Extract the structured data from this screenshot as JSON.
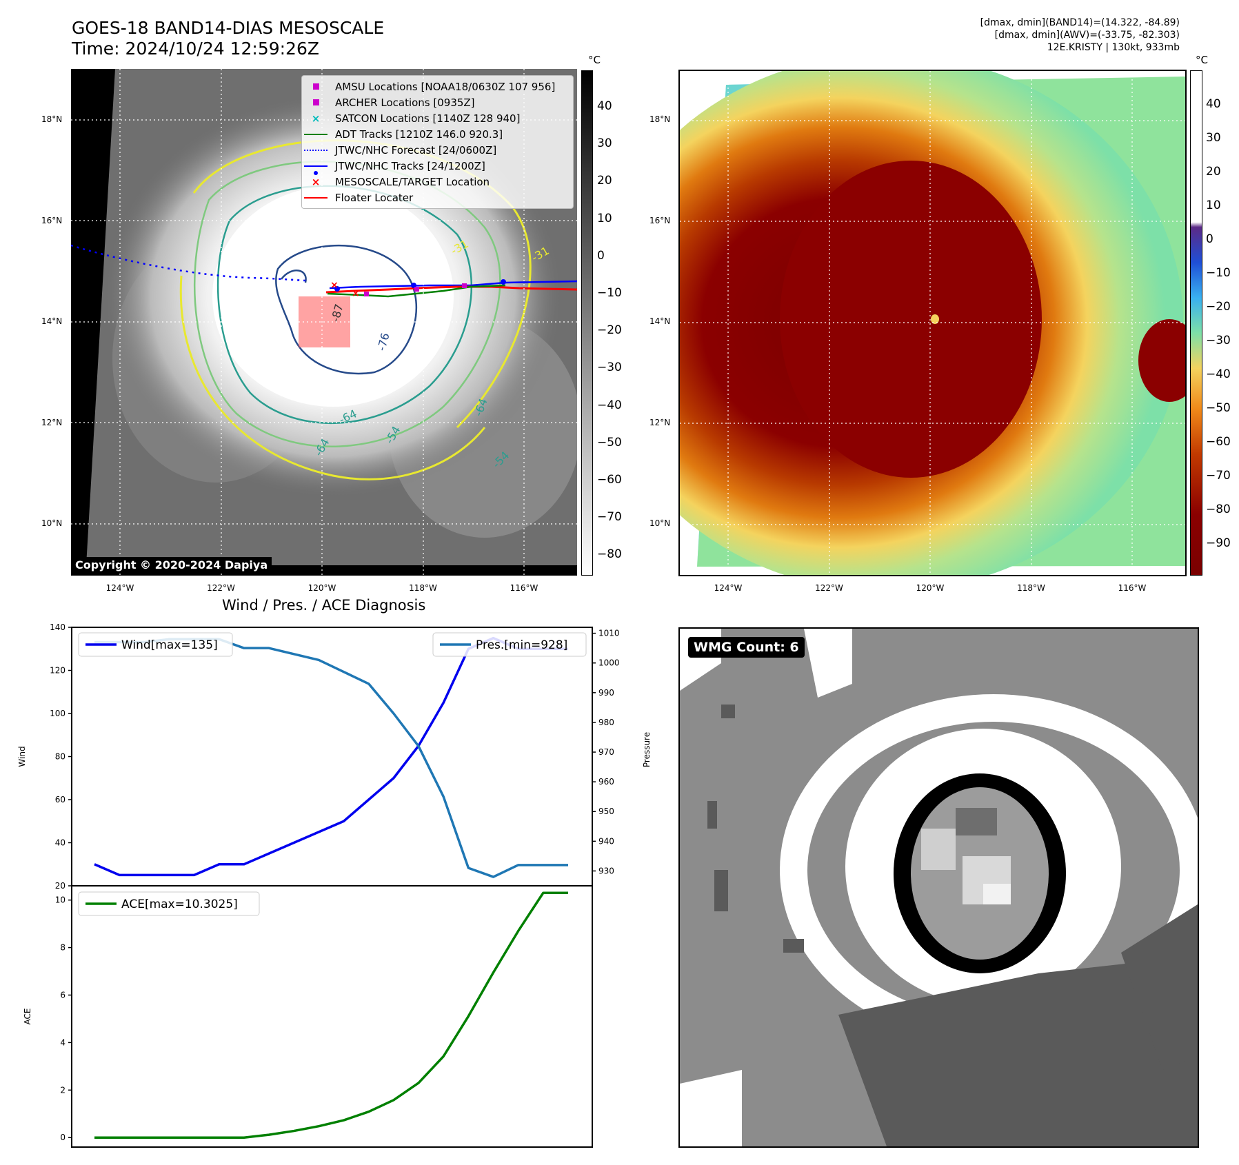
{
  "header": {
    "title_line1": "GOES-18 BAND14-DIAS MESOSCALE",
    "title_line2": "Time: 2024/10/24 12:59:26Z",
    "info_line1": "[dmax, dmin](BAND14)=(14.322, -84.89)",
    "info_line2": "[dmax, dmin](AWV)=(-33.75, -82.303)",
    "info_line3": "12E.KRISTY | 130kt, 933mb"
  },
  "map_left": {
    "legend": [
      {
        "label": "AMSU Locations [NOAA18/0630Z 107 956]",
        "symbol": "square",
        "color": "#cc00cc"
      },
      {
        "label": "ARCHER Locations [0935Z]",
        "symbol": "square",
        "color": "#cc00cc"
      },
      {
        "label": "SATCON Locations [1140Z 128 940]",
        "symbol": "x",
        "color": "#00bbbb"
      },
      {
        "label": "ADT Tracks [1210Z 146.0 920.3]",
        "symbol": "line",
        "color": "#008000"
      },
      {
        "label": "JTWC/NHC Forecast [24/0600Z]",
        "symbol": "dotted",
        "color": "#0000ff"
      },
      {
        "label": "JTWC/NHC Tracks [24/1200Z]",
        "symbol": "line-dot",
        "color": "#0000ff"
      },
      {
        "label": "MESOSCALE/TARGET Location",
        "symbol": "x",
        "color": "#ff0000"
      },
      {
        "label": "Floater Locater",
        "symbol": "line",
        "color": "#ff0000"
      }
    ],
    "contour_labels": [
      "-87",
      "-76",
      "-64",
      "-64",
      "-64",
      "-54",
      "-54",
      "-31",
      "-31",
      "-54",
      "-54"
    ],
    "copyright": "Copyright © 2020-2024 Dapiya",
    "colorbar_unit": "°C",
    "colorbar_ticks": [
      "40",
      "30",
      "20",
      "10",
      "0",
      "−10",
      "−20",
      "−30",
      "−40",
      "−50",
      "−60",
      "−70",
      "−80"
    ]
  },
  "map_right": {
    "colorbar_unit": "°C",
    "colorbar_ticks": [
      "40",
      "30",
      "20",
      "10",
      "0",
      "−10",
      "−20",
      "−30",
      "−40",
      "−50",
      "−60",
      "−70",
      "−80",
      "−90"
    ]
  },
  "map_axes": {
    "lon_ticks": [
      "124°W",
      "122°W",
      "120°W",
      "118°W",
      "116°W"
    ],
    "lat_ticks": [
      "18°N",
      "16°N",
      "14°N",
      "12°N",
      "10°N"
    ]
  },
  "diagnosis": {
    "title": "Wind / Pres. / ACE Diagnosis",
    "wmg_label": "WMG Count: 6"
  },
  "chart_data": [
    {
      "type": "line",
      "title": "Wind / Pres. / ACE Diagnosis",
      "ylabel": "Wind",
      "ylabel_right": "Pressure",
      "ylim": [
        20,
        140
      ],
      "ylim_right": [
        925,
        1012
      ],
      "y_ticks": [
        "20",
        "40",
        "60",
        "80",
        "100",
        "120",
        "140"
      ],
      "y_ticks_right": [
        "930",
        "940",
        "950",
        "960",
        "970",
        "980",
        "990",
        "1000",
        "1010"
      ],
      "x": [
        0,
        1,
        2,
        3,
        4,
        5,
        6,
        7,
        8,
        9,
        10,
        11,
        12,
        13,
        14,
        15,
        16,
        17,
        18,
        19
      ],
      "series": [
        {
          "name": "Wind[max=135]",
          "color": "#0000ee",
          "axis": "left",
          "values": [
            30,
            25,
            25,
            25,
            25,
            30,
            30,
            35,
            40,
            45,
            50,
            60,
            70,
            85,
            105,
            130,
            135,
            130,
            130,
            130
          ]
        },
        {
          "name": "Pres.[min=928]",
          "color": "#1f77b4",
          "axis": "right",
          "values": [
            1007,
            1007,
            1007,
            1008,
            1008,
            1008,
            1005,
            1005,
            1003,
            1001,
            997,
            993,
            983,
            972,
            955,
            931,
            928,
            932,
            932,
            932
          ]
        }
      ]
    },
    {
      "type": "line",
      "ylabel": "ACE",
      "ylim": [
        -0.4,
        10.6
      ],
      "y_ticks": [
        "0",
        "2",
        "4",
        "6",
        "8",
        "10"
      ],
      "x": [
        0,
        1,
        2,
        3,
        4,
        5,
        6,
        7,
        8,
        9,
        10,
        11,
        12,
        13,
        14,
        15,
        16,
        17,
        18,
        19
      ],
      "series": [
        {
          "name": "ACE[max=10.3025]",
          "color": "#008000",
          "values": [
            0,
            0,
            0,
            0,
            0,
            0,
            0,
            0.12,
            0.28,
            0.48,
            0.73,
            1.09,
            1.58,
            2.3,
            3.42,
            5.11,
            6.95,
            8.7,
            10.3025,
            10.3025
          ]
        }
      ]
    }
  ]
}
